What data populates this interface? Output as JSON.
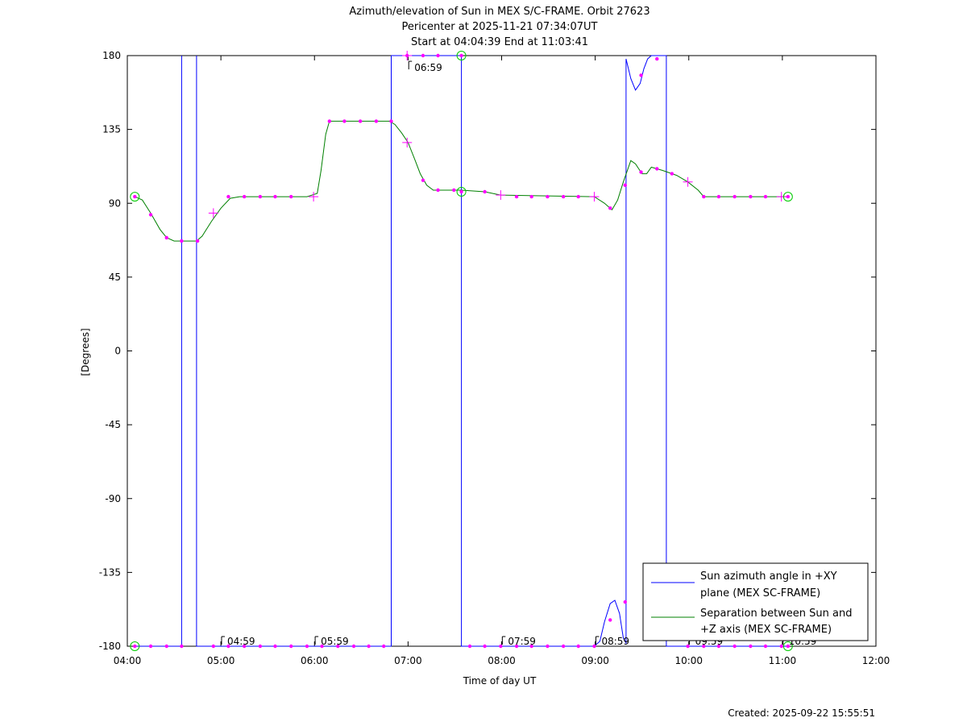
{
  "chart_data": {
    "type": "line",
    "title": "Azimuth/elevation of Sun in MEX S/C-FRAME.  Orbit 27623",
    "subtitle1": "Pericenter at 2025-11-21 07:34:07UT",
    "subtitle2": "Start at 04:04:39 End at 11:03:41",
    "xlabel": "Time of day UT",
    "ylabel": "[Degrees]",
    "created": "Created: 2025-09-22 15:55:51",
    "xlim": [
      4.0,
      12.0
    ],
    "ylim": [
      -180,
      180
    ],
    "x_ticks": [
      {
        "v": 4.0,
        "label": "04:00"
      },
      {
        "v": 5.0,
        "label": "05:00"
      },
      {
        "v": 6.0,
        "label": "06:00"
      },
      {
        "v": 7.0,
        "label": "07:00"
      },
      {
        "v": 8.0,
        "label": "08:00"
      },
      {
        "v": 9.0,
        "label": "09:00"
      },
      {
        "v": 10.0,
        "label": "10:00"
      },
      {
        "v": 11.0,
        "label": "11:00"
      },
      {
        "v": 12.0,
        "label": "12:00"
      }
    ],
    "y_ticks": [
      {
        "v": 180,
        "label": "180"
      },
      {
        "v": 135,
        "label": "135"
      },
      {
        "v": 90,
        "label": "90"
      },
      {
        "v": 45,
        "label": "45"
      },
      {
        "v": 0,
        "label": "0"
      },
      {
        "v": -45,
        "label": "-45"
      },
      {
        "v": -90,
        "label": "-90"
      },
      {
        "v": -135,
        "label": "-135"
      },
      {
        "v": -180,
        "label": "-180"
      }
    ],
    "hour_marks": [
      {
        "x": 4.99,
        "y": -180,
        "label": "04:59"
      },
      {
        "x": 5.99,
        "y": -180,
        "label": "05:59"
      },
      {
        "x": 6.99,
        "y": 178,
        "label": "06:59"
      },
      {
        "x": 7.99,
        "y": -180,
        "label": "07:59"
      },
      {
        "x": 8.99,
        "y": -180,
        "label": "08:59"
      },
      {
        "x": 9.99,
        "y": -180,
        "label": "09:59"
      },
      {
        "x": 10.99,
        "y": -180,
        "label": "10:59"
      }
    ],
    "series": [
      {
        "name": "Sun azimuth angle in +XY plane (MEX SC-FRAME)",
        "color": "#0000ff",
        "segments": [
          [
            [
              4.08,
              -180
            ],
            [
              4.58,
              -180
            ],
            [
              4.58,
              180
            ]
          ],
          [
            [
              4.74,
              180
            ],
            [
              4.74,
              -180
            ],
            [
              6.82,
              -180
            ],
            [
              6.82,
              180
            ]
          ],
          [
            [
              6.82,
              180
            ],
            [
              7.57,
              180
            ],
            [
              7.57,
              -180
            ],
            [
              8.99,
              -180
            ],
            [
              9.05,
              -177
            ],
            [
              9.1,
              -165
            ],
            [
              9.16,
              -154
            ],
            [
              9.21,
              -152
            ],
            [
              9.26,
              -160
            ],
            [
              9.3,
              -175
            ],
            [
              9.33,
              -178
            ],
            [
              9.33,
              178
            ],
            [
              9.38,
              166
            ],
            [
              9.43,
              159
            ],
            [
              9.48,
              163
            ],
            [
              9.52,
              172
            ],
            [
              9.56,
              178
            ],
            [
              9.6,
              180
            ],
            [
              9.76,
              180
            ],
            [
              9.76,
              -180
            ],
            [
              11.06,
              -180
            ]
          ]
        ],
        "markers": [
          {
            "x": 4.08,
            "y": -180
          },
          {
            "x": 4.25,
            "y": -180
          },
          {
            "x": 4.42,
            "y": -180
          },
          {
            "x": 4.58,
            "y": -180
          },
          {
            "x": 4.92,
            "y": -180
          },
          {
            "x": 5.08,
            "y": -180
          },
          {
            "x": 5.25,
            "y": -180
          },
          {
            "x": 5.42,
            "y": -180
          },
          {
            "x": 5.58,
            "y": -180
          },
          {
            "x": 5.75,
            "y": -180
          },
          {
            "x": 5.92,
            "y": -180
          },
          {
            "x": 6.08,
            "y": -180
          },
          {
            "x": 6.25,
            "y": -180
          },
          {
            "x": 6.42,
            "y": -180
          },
          {
            "x": 6.58,
            "y": -180
          },
          {
            "x": 6.74,
            "y": -180
          },
          {
            "x": 6.99,
            "y": 180
          },
          {
            "x": 7.16,
            "y": 180
          },
          {
            "x": 7.32,
            "y": 180
          },
          {
            "x": 7.57,
            "y": 180
          },
          {
            "x": 7.66,
            "y": -180
          },
          {
            "x": 7.82,
            "y": -180
          },
          {
            "x": 7.99,
            "y": -180
          },
          {
            "x": 8.16,
            "y": -180
          },
          {
            "x": 8.32,
            "y": -180
          },
          {
            "x": 8.49,
            "y": -180
          },
          {
            "x": 8.66,
            "y": -180
          },
          {
            "x": 8.82,
            "y": -180
          },
          {
            "x": 8.99,
            "y": -180
          },
          {
            "x": 9.16,
            "y": -164
          },
          {
            "x": 9.32,
            "y": -153
          },
          {
            "x": 9.49,
            "y": 168
          },
          {
            "x": 9.66,
            "y": 178
          },
          {
            "x": 9.99,
            "y": -180
          },
          {
            "x": 10.16,
            "y": -180
          },
          {
            "x": 10.32,
            "y": -180
          },
          {
            "x": 10.49,
            "y": -180
          },
          {
            "x": 10.66,
            "y": -180
          },
          {
            "x": 10.82,
            "y": -180
          },
          {
            "x": 10.99,
            "y": -180
          },
          {
            "x": 11.06,
            "y": -180
          }
        ]
      },
      {
        "name": "Separation between Sun and +Z axis (MEX SC-FRAME)",
        "color": "#008000",
        "segments": [
          [
            [
              4.08,
              94
            ],
            [
              4.16,
              92
            ],
            [
              4.25,
              84
            ],
            [
              4.35,
              74
            ],
            [
              4.42,
              69
            ],
            [
              4.5,
              67
            ],
            [
              4.6,
              67
            ],
            [
              4.74,
              67
            ],
            [
              4.8,
              70
            ],
            [
              4.9,
              79
            ],
            [
              5.0,
              87
            ],
            [
              5.1,
              93
            ],
            [
              5.2,
              94
            ],
            [
              5.92,
              94
            ],
            [
              6.03,
              96
            ],
            [
              6.07,
              110
            ],
            [
              6.12,
              132
            ],
            [
              6.16,
              140
            ],
            [
              6.8,
              140
            ],
            [
              6.86,
              138
            ],
            [
              6.93,
              133
            ],
            [
              7.0,
              127
            ],
            [
              7.07,
              117
            ],
            [
              7.13,
              108
            ],
            [
              7.2,
              101
            ],
            [
              7.27,
              98
            ],
            [
              7.57,
              98
            ],
            [
              7.82,
              97
            ],
            [
              7.99,
              95
            ],
            [
              8.99,
              94
            ],
            [
              9.1,
              90
            ],
            [
              9.18,
              86
            ],
            [
              9.24,
              92
            ],
            [
              9.3,
              103
            ],
            [
              9.38,
              116
            ],
            [
              9.43,
              114
            ],
            [
              9.5,
              108
            ],
            [
              9.55,
              108
            ],
            [
              9.6,
              112
            ],
            [
              9.72,
              110
            ],
            [
              9.87,
              107
            ],
            [
              9.99,
              103
            ],
            [
              10.1,
              98
            ],
            [
              10.16,
              94
            ],
            [
              11.06,
              94
            ]
          ]
        ],
        "markers": [
          {
            "x": 4.08,
            "y": 94
          },
          {
            "x": 4.25,
            "y": 83
          },
          {
            "x": 4.42,
            "y": 69
          },
          {
            "x": 4.58,
            "y": 67
          },
          {
            "x": 4.75,
            "y": 67
          },
          {
            "x": 5.08,
            "y": 94
          },
          {
            "x": 5.25,
            "y": 94
          },
          {
            "x": 5.42,
            "y": 94
          },
          {
            "x": 5.58,
            "y": 94
          },
          {
            "x": 5.75,
            "y": 94
          },
          {
            "x": 6.16,
            "y": 140
          },
          {
            "x": 6.32,
            "y": 140
          },
          {
            "x": 6.49,
            "y": 140
          },
          {
            "x": 6.66,
            "y": 140
          },
          {
            "x": 6.82,
            "y": 140
          },
          {
            "x": 7.16,
            "y": 104
          },
          {
            "x": 7.32,
            "y": 98
          },
          {
            "x": 7.49,
            "y": 98
          },
          {
            "x": 7.57,
            "y": 97
          },
          {
            "x": 7.82,
            "y": 97
          },
          {
            "x": 8.16,
            "y": 94
          },
          {
            "x": 8.32,
            "y": 94
          },
          {
            "x": 8.49,
            "y": 94
          },
          {
            "x": 8.66,
            "y": 94
          },
          {
            "x": 8.82,
            "y": 94
          },
          {
            "x": 9.16,
            "y": 87
          },
          {
            "x": 9.32,
            "y": 101
          },
          {
            "x": 9.49,
            "y": 109
          },
          {
            "x": 9.66,
            "y": 111
          },
          {
            "x": 9.82,
            "y": 108
          },
          {
            "x": 10.16,
            "y": 94
          },
          {
            "x": 10.32,
            "y": 94
          },
          {
            "x": 10.49,
            "y": 94
          },
          {
            "x": 10.66,
            "y": 94
          },
          {
            "x": 10.82,
            "y": 94
          },
          {
            "x": 11.06,
            "y": 94
          }
        ]
      }
    ],
    "plus_markers": [
      {
        "x": 4.92,
        "y": 84
      },
      {
        "x": 5.99,
        "y": 94
      },
      {
        "x": 6.99,
        "y": 180
      },
      {
        "x": 6.99,
        "y": 127
      },
      {
        "x": 7.99,
        "y": 95
      },
      {
        "x": 8.99,
        "y": 94
      },
      {
        "x": 9.99,
        "y": 103
      },
      {
        "x": 10.99,
        "y": 94
      }
    ],
    "circle_markers": [
      {
        "x": 4.08,
        "y": 94
      },
      {
        "x": 4.08,
        "y": -180
      },
      {
        "x": 7.57,
        "y": 180
      },
      {
        "x": 7.57,
        "y": 97
      },
      {
        "x": 11.06,
        "y": 94
      },
      {
        "x": 11.06,
        "y": -180
      }
    ],
    "marker_color": "#ff00ff",
    "circle_color": "#00cc00",
    "legend_position": "bottom-right",
    "legend": [
      {
        "line1": "Sun azimuth angle in +XY",
        "line2": "plane (MEX SC-FRAME)",
        "color": "#0000ff"
      },
      {
        "line1": "Separation between Sun and",
        "line2": "+Z axis (MEX SC-FRAME)",
        "color": "#008000"
      }
    ]
  }
}
